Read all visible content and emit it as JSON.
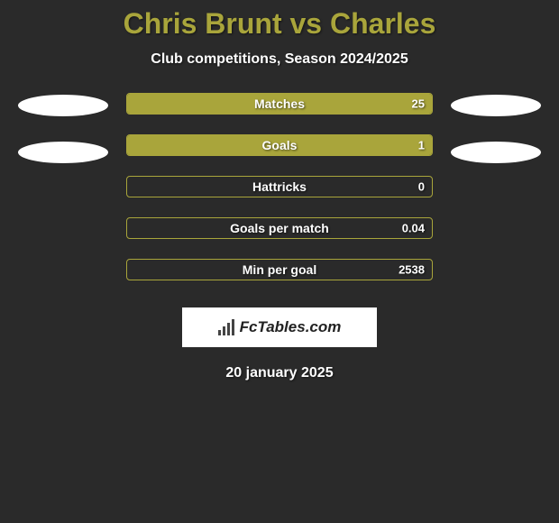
{
  "title_parts": {
    "player1": "Chris Brunt",
    "vs": " vs ",
    "player2": "Charles"
  },
  "title_color": "#a9a53b",
  "subtitle": "Club competitions, Season 2024/2025",
  "bar_color": "#a9a53b",
  "border_color": "#a9a53b",
  "stats": [
    {
      "label": "Matches",
      "value": "25",
      "fill_pct": 100
    },
    {
      "label": "Goals",
      "value": "1",
      "fill_pct": 100
    },
    {
      "label": "Hattricks",
      "value": "0",
      "fill_pct": 0
    },
    {
      "label": "Goals per match",
      "value": "0.04",
      "fill_pct": 0
    },
    {
      "label": "Min per goal",
      "value": "2538",
      "fill_pct": 0
    }
  ],
  "logo_text": "FcTables.com",
  "date": "20 january 2025",
  "background_color": "#2a2a2a",
  "ellipse_color": "#ffffff"
}
